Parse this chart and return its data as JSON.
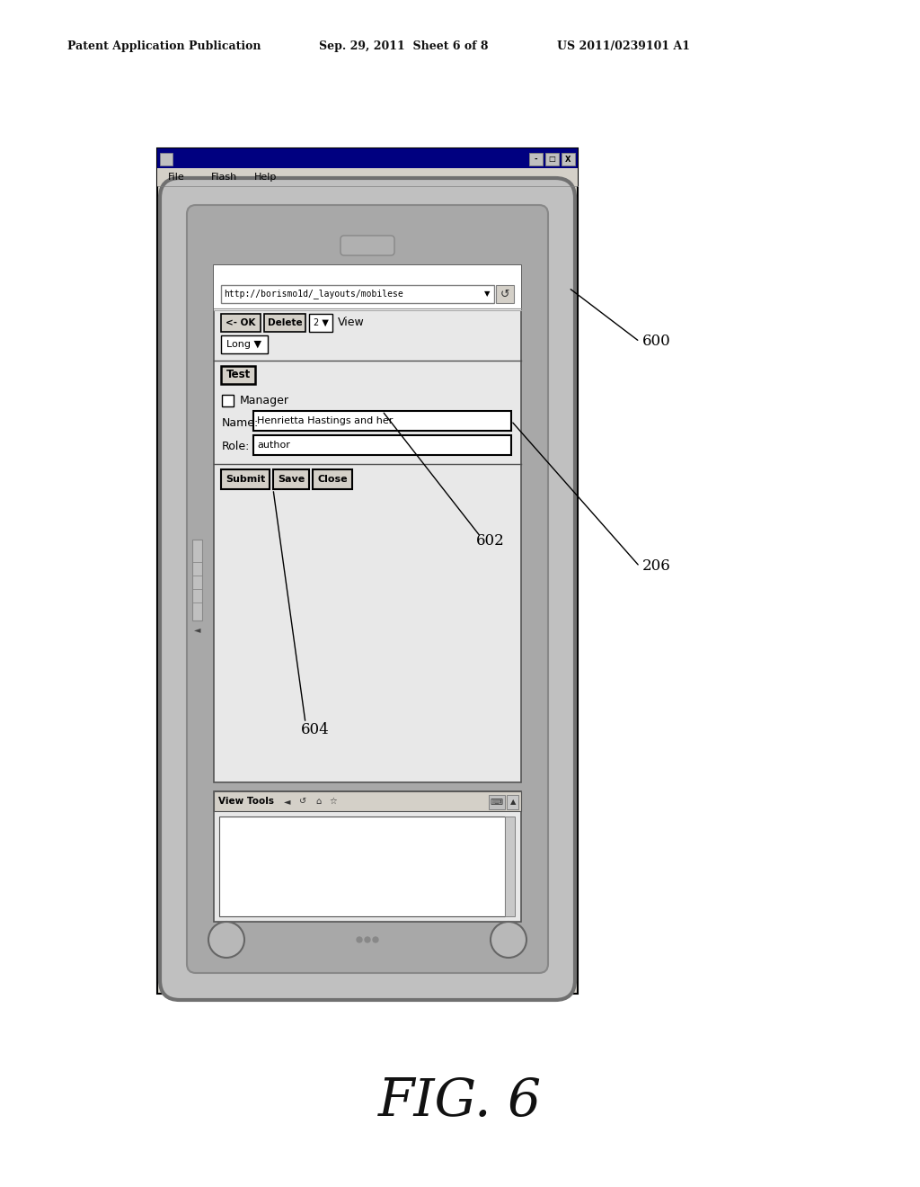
{
  "bg_color": "#ffffff",
  "header_left": "Patent Application Publication",
  "header_mid": "Sep. 29, 2011  Sheet 6 of 8",
  "header_right": "US 2011/0239101 A1",
  "fig_label": "FIG. 6",
  "label_600": "600",
  "label_206": "206",
  "label_602": "602",
  "label_604": "604",
  "url_text": "http://borismo1d/_layouts/mobilese",
  "ok_btn": "<- OK",
  "delete_btn": "Delete",
  "view_label": "View",
  "num_dropdown": "2",
  "long_label": "Long",
  "test_label": "Test",
  "manager_label": "Manager",
  "name_label": "Name:",
  "name_value": "Henrietta Hastings and her",
  "role_label": "Role:",
  "role_value": "author",
  "submit_btn": "Submit",
  "save_btn": "Save",
  "close_btn": "Close",
  "viewtools_label": "View Tools",
  "menu_items": [
    "File",
    "Flash",
    "Help"
  ]
}
